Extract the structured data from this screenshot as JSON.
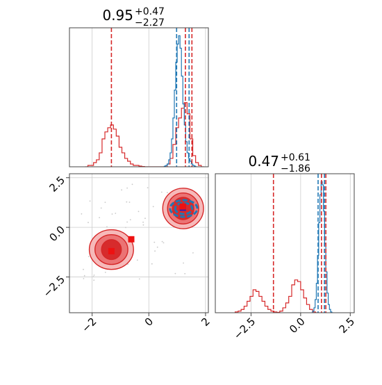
{
  "chart_data": {
    "type": "corner",
    "colors": {
      "red": "#d62728",
      "blue": "#1f77b4",
      "red_fill": "#f4a6a6",
      "red_dark": "#d62728",
      "grid": "#cccccc",
      "axis": "#444444"
    },
    "panels": [
      {
        "id": "x1_hist",
        "type": "histogram",
        "title": {
          "value": "0.95",
          "upper": "+0.47",
          "lower": "−2.27"
        },
        "xlim": [
          -2.8,
          2.1
        ],
        "x_ticks": [
          -2,
          0,
          2
        ],
        "grid": true,
        "vlines": [
          {
            "x": -1.32,
            "color": "red"
          },
          {
            "x": 0.98,
            "color": "blue"
          },
          {
            "x": 1.42,
            "color": "blue"
          },
          {
            "x": 1.29,
            "color": "red"
          },
          {
            "x": 1.52,
            "color": "red"
          }
        ],
        "series": [
          {
            "color": "red",
            "bin_start": -2.25,
            "bin_width": 0.1,
            "heights": [
              0,
              0.01,
              0.01,
              0.03,
              0.05,
              0.1,
              0.2,
              0.25,
              0.28,
              0.3,
              0.27,
              0.22,
              0.14,
              0.1,
              0.06,
              0.04,
              0.02,
              0.01,
              0.01,
              0.005,
              0.002,
              0,
              0,
              0,
              0,
              0,
              0,
              0,
              0,
              0.02,
              0.06,
              0.16,
              0.28,
              0.35,
              0.42,
              0.46,
              0.38,
              0.2,
              0.08,
              0.03,
              0.01,
              0
            ]
          },
          {
            "color": "blue",
            "bin_start": 0.5,
            "bin_width": 0.05,
            "heights": [
              0,
              0.005,
              0.01,
              0.02,
              0.05,
              0.1,
              0.2,
              0.35,
              0.55,
              0.75,
              0.88,
              0.94,
              0.85,
              0.65,
              0.45,
              0.3,
              0.18,
              0.1,
              0.06,
              0.04,
              0.02,
              0.01,
              0.005,
              0
            ]
          }
        ]
      },
      {
        "id": "x2_hist",
        "type": "histogram",
        "title": {
          "value": "0.47",
          "upper": "+0.61",
          "lower": "−1.86"
        },
        "xlim": [
          -4.3,
          2.7
        ],
        "x_ticks": [
          -2.5,
          0.0,
          2.5
        ],
        "x_tick_labels": [
          "−2.5",
          "0.0",
          "2.5"
        ],
        "grid": true,
        "vlines": [
          {
            "x": -1.37,
            "color": "red"
          },
          {
            "x": 0.88,
            "color": "blue"
          },
          {
            "x": 1.2,
            "color": "blue"
          },
          {
            "x": 1.05,
            "color": "red"
          },
          {
            "x": 1.27,
            "color": "red"
          }
        ],
        "series": [
          {
            "color": "red",
            "bin_start": -3.3,
            "bin_width": 0.15,
            "heights": [
              0.005,
              0.01,
              0.02,
              0.04,
              0.07,
              0.1,
              0.14,
              0.13,
              0.1,
              0.07,
              0.04,
              0.02,
              0.01,
              0.005,
              0.002,
              0.01,
              0.03,
              0.06,
              0.1,
              0.17,
              0.2,
              0.19,
              0.14,
              0.09,
              0.05,
              0.02,
              0.005,
              0
            ]
          },
          {
            "color": "blue",
            "bin_start": 0.55,
            "bin_width": 0.06,
            "heights": [
              0,
              0.01,
              0.03,
              0.08,
              0.18,
              0.35,
              0.55,
              0.72,
              0.8,
              0.78,
              0.62,
              0.42,
              0.25,
              0.12,
              0.05,
              0.02,
              0.005,
              0
            ]
          }
        ]
      },
      {
        "id": "x1_x2_2d",
        "type": "contour",
        "xlim": [
          -2.8,
          2.1
        ],
        "ylim": [
          -4.3,
          2.7
        ],
        "x_ticks": [
          -2,
          0,
          2
        ],
        "y_ticks": [
          -2.5,
          0.0,
          2.5
        ],
        "y_tick_labels": [
          "−2.5",
          "0.0",
          "2.5"
        ],
        "grid": true,
        "modes": [
          {
            "color": "red",
            "center": [
              -1.32,
              -1.12
            ],
            "levels": [
              {
                "rx": 0.78,
                "ry": 1.0
              },
              {
                "rx": 0.58,
                "ry": 0.75
              },
              {
                "rx": 0.35,
                "ry": 0.5
              }
            ]
          },
          {
            "color": "red",
            "center": [
              1.21,
              0.95
            ],
            "levels": [
              {
                "rx": 0.72,
                "ry": 1.02
              },
              {
                "rx": 0.55,
                "ry": 0.78
              },
              {
                "rx": 0.38,
                "ry": 0.56
              }
            ]
          },
          {
            "color": "blue",
            "center": [
              1.23,
              0.95
            ],
            "levels": [
              {
                "rx": 0.48,
                "ry": 0.42
              },
              {
                "rx": 0.3,
                "ry": 0.28
              }
            ]
          }
        ],
        "markers": [
          {
            "x": -1.32,
            "y": -1.2,
            "color": "red",
            "shape": "square"
          },
          {
            "x": -0.62,
            "y": -0.6,
            "color": "red",
            "shape": "square"
          },
          {
            "x": 1.2,
            "y": 0.99,
            "color": "blue",
            "shape": "square"
          },
          {
            "x": 1.2,
            "y": 1.05,
            "color": "red",
            "shape": "square"
          }
        ]
      }
    ]
  }
}
